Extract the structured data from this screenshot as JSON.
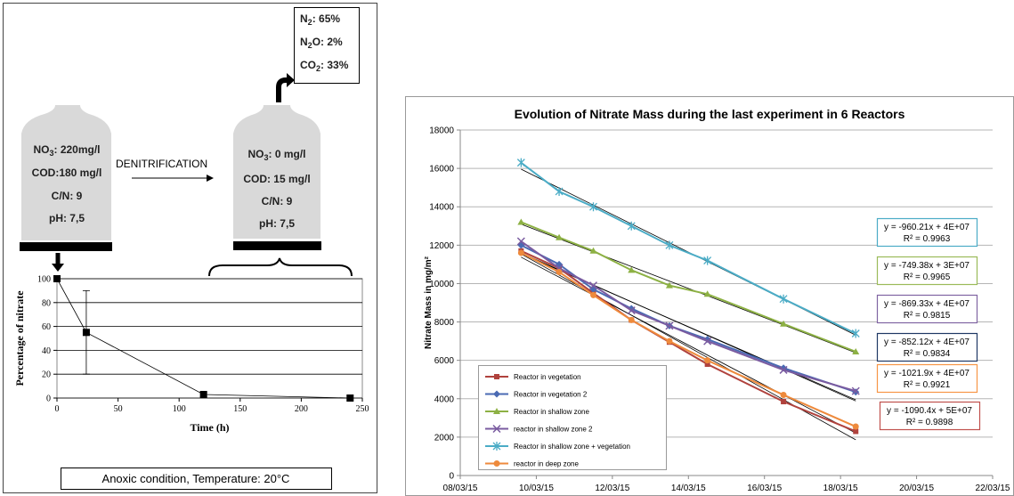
{
  "diagram": {
    "before": {
      "nitrate": [
        "NO",
        "3",
        ": 220mg/l"
      ],
      "cod": "COD:180 mg/l",
      "cn": "C/N: 9",
      "ph": "pH: 7,5"
    },
    "process": "DENITRIFICATION",
    "after": {
      "nitrate": [
        "NO",
        "3",
        ": 0 mg/l"
      ],
      "cod": "COD: 15 mg/l",
      "cn": "C/N: 9",
      "ph": "pH: 7,5"
    },
    "gases": [
      [
        "N",
        "2",
        ": 65%"
      ],
      [
        "N",
        "2",
        "O: 2%"
      ],
      [
        "CO",
        "2",
        ": 33%"
      ]
    ],
    "condition": "Anoxic condition, Temperature: 20°C"
  },
  "chart_data": [
    {
      "type": "line",
      "xlabel": "Time (h)",
      "ylabel": "Percentage of nitrate",
      "x": [
        0,
        24,
        120,
        240
      ],
      "values": [
        100,
        55,
        3,
        0
      ],
      "errors": [
        null,
        35,
        2,
        null
      ],
      "color": "#000000",
      "xlim": [
        0,
        250
      ],
      "xticks": [
        0,
        50,
        100,
        150,
        200,
        250
      ],
      "ylim": [
        0,
        100
      ],
      "yticks": [
        0,
        20,
        40,
        60,
        80,
        100
      ],
      "grid": true
    },
    {
      "type": "line",
      "title": "Evolution of Nitrate Mass during the last experiment in 6 Reactors",
      "ylabel": "Nitrate Mass in mg/m²",
      "x": [
        42072.6,
        42073.6,
        42074.5,
        42075.5,
        42076.5,
        42077.5,
        42079.5,
        42081.4
      ],
      "xlim": [
        42071,
        42085
      ],
      "xticks": [
        {
          "value": 42071,
          "label": "08/03/15"
        },
        {
          "value": 42073,
          "label": "10/03/15"
        },
        {
          "value": 42075,
          "label": "12/03/15"
        },
        {
          "value": 42077,
          "label": "14/03/15"
        },
        {
          "value": 42079,
          "label": "16/03/15"
        },
        {
          "value": 42081,
          "label": "18/03/15"
        },
        {
          "value": 42083,
          "label": "20/03/15"
        },
        {
          "value": 42085,
          "label": "22/03/15"
        }
      ],
      "ylim": [
        0,
        18000
      ],
      "yticks": [
        0,
        2000,
        4000,
        6000,
        8000,
        10000,
        12000,
        14000,
        16000,
        18000
      ],
      "grid": true,
      "legend": "lower left",
      "trendline": true,
      "series": [
        {
          "name": "Reactor in vegetation",
          "color": "#B0423D",
          "marker": "square",
          "trendline_color": "#C0504D",
          "values": [
            11700,
            10800,
            9500,
            8100,
            6950,
            5800,
            3850,
            2300
          ],
          "trendline_label": [
            "y = -1090.4x + 5E+07",
            "R² = 0.9898"
          ]
        },
        {
          "name": "Reactor in vegetation 2",
          "color": "#4A6AB3",
          "marker": "diamond",
          "trendline_color": "#1F3864",
          "values": [
            12000,
            11000,
            9700,
            8700,
            7800,
            7100,
            5600,
            4350
          ],
          "trendline_label": [
            "y = -852.12x + 4E+07",
            "R² = 0.9834"
          ]
        },
        {
          "name": "Reactor in shallow zone",
          "color": "#8DB144",
          "marker": "triangle",
          "trendline_color": "#9BBB59",
          "values": [
            13200,
            12400,
            11700,
            10700,
            9900,
            9450,
            7900,
            6450
          ],
          "trendline_label": [
            "y = -749.38x + 3E+07",
            "R² = 0.9965"
          ]
        },
        {
          "name": "reactor in shallow zone 2",
          "color": "#7A5BA0",
          "marker": "x",
          "trendline_color": "#8064A2",
          "values": [
            12200,
            10800,
            9900,
            8600,
            7800,
            7000,
            5500,
            4400
          ],
          "trendline_label": [
            "y = -869.33x + 4E+07",
            "R² = 0.9815"
          ]
        },
        {
          "name": "Reactor in shallow zone + vegetation",
          "color": "#4BACC6",
          "marker": "star",
          "trendline_color": "#4BACC6",
          "values": [
            16300,
            14800,
            14000,
            13000,
            12000,
            11200,
            9200,
            7400
          ],
          "trendline_label": [
            "y = -960.21x + 4E+07",
            "R² = 0.9963"
          ]
        },
        {
          "name": "reactor in deep zone",
          "color": "#EE8A3C",
          "marker": "circle",
          "trendline_color": "#F79646",
          "values": [
            11600,
            10600,
            9400,
            8100,
            7000,
            6000,
            4200,
            2550
          ],
          "trendline_label": [
            "y = -1021.9x + 4E+07",
            "R² = 0.9921"
          ]
        }
      ]
    }
  ]
}
